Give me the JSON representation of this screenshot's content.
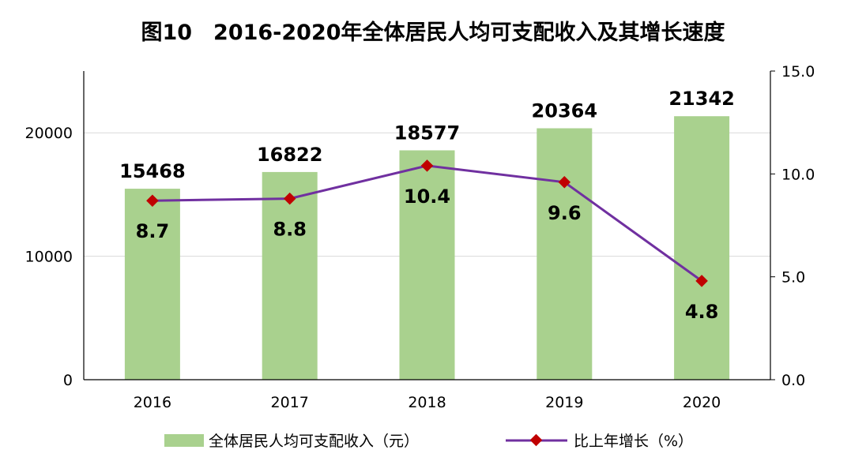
{
  "chart_data": {
    "type": "bar+line",
    "title": "图10　2016-2020年全体居民人均可支配收入及其增长速度",
    "categories": [
      "2016",
      "2017",
      "2018",
      "2019",
      "2020"
    ],
    "series": [
      {
        "name": "全体居民人均可支配收入（元）",
        "type": "bar",
        "axis": "left",
        "values": [
          15468,
          16822,
          18577,
          20364,
          21342
        ],
        "color": "#a9d18e"
      },
      {
        "name": "比上年增长（%）",
        "type": "line",
        "axis": "right",
        "values": [
          8.7,
          8.8,
          10.4,
          9.6,
          4.8
        ],
        "color": "#7030a0",
        "marker_color": "#c00000"
      }
    ],
    "left_axis": {
      "ylim": [
        0,
        25000
      ],
      "ticks": [
        "0",
        "10000",
        "20000"
      ],
      "tick_values": [
        0,
        10000,
        20000
      ]
    },
    "right_axis": {
      "ylim": [
        0,
        15
      ],
      "ticks": [
        "0.0",
        "5.0",
        "10.0",
        "15.0"
      ],
      "tick_values": [
        0,
        5,
        10,
        15
      ]
    },
    "grid": true,
    "legend_position": "bottom"
  }
}
